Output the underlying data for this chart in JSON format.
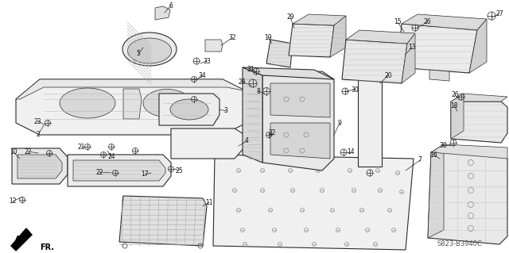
{
  "background_color": "#ffffff",
  "diagram_code": "S823-B3940C",
  "line_color": "#2a2a2a",
  "light_gray": "#c8c8c8",
  "mid_gray": "#a0a0a0",
  "dark_gray": "#707070",
  "white_fill": "#f5f5f5",
  "hatch_color": "#888888"
}
